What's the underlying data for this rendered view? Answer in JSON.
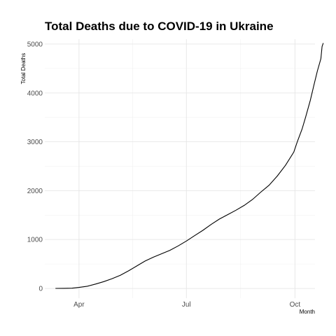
{
  "chart_data": {
    "type": "line",
    "title": "Total Deaths due to COVID-19 in Ukraine",
    "xlabel": "Month",
    "ylabel": "Total Deaths",
    "x_ticks": [
      {
        "label": "Apr",
        "date": "2020-04-01"
      },
      {
        "label": "Jul",
        "date": "2020-07-01"
      },
      {
        "label": "Oct",
        "date": "2020-10-01"
      }
    ],
    "y_ticks": [
      0,
      1000,
      2000,
      3000,
      4000,
      5000
    ],
    "xlim": [
      "2020-03-03",
      "2020-10-18"
    ],
    "ylim": [
      -200,
      5100
    ],
    "grid": true,
    "series": [
      {
        "color": "#000000",
        "points": [
          {
            "x": "2020-03-12",
            "y": 0
          },
          {
            "x": "2020-03-19",
            "y": 2
          },
          {
            "x": "2020-03-26",
            "y": 5
          },
          {
            "x": "2020-04-01",
            "y": 20
          },
          {
            "x": "2020-04-08",
            "y": 45
          },
          {
            "x": "2020-04-15",
            "y": 90
          },
          {
            "x": "2020-04-22",
            "y": 140
          },
          {
            "x": "2020-04-29",
            "y": 200
          },
          {
            "x": "2020-05-06",
            "y": 270
          },
          {
            "x": "2020-05-13",
            "y": 360
          },
          {
            "x": "2020-05-20",
            "y": 460
          },
          {
            "x": "2020-05-27",
            "y": 560
          },
          {
            "x": "2020-06-03",
            "y": 640
          },
          {
            "x": "2020-06-10",
            "y": 710
          },
          {
            "x": "2020-06-17",
            "y": 780
          },
          {
            "x": "2020-06-24",
            "y": 870
          },
          {
            "x": "2020-07-01",
            "y": 970
          },
          {
            "x": "2020-07-08",
            "y": 1080
          },
          {
            "x": "2020-07-15",
            "y": 1190
          },
          {
            "x": "2020-07-22",
            "y": 1310
          },
          {
            "x": "2020-07-29",
            "y": 1420
          },
          {
            "x": "2020-08-05",
            "y": 1510
          },
          {
            "x": "2020-08-12",
            "y": 1600
          },
          {
            "x": "2020-08-19",
            "y": 1700
          },
          {
            "x": "2020-08-26",
            "y": 1820
          },
          {
            "x": "2020-09-02",
            "y": 1970
          },
          {
            "x": "2020-09-09",
            "y": 2110
          },
          {
            "x": "2020-09-16",
            "y": 2300
          },
          {
            "x": "2020-09-23",
            "y": 2520
          },
          {
            "x": "2020-09-30",
            "y": 2790
          },
          {
            "x": "2020-10-03",
            "y": 3000
          },
          {
            "x": "2020-10-07",
            "y": 3260
          },
          {
            "x": "2020-10-10",
            "y": 3500
          },
          {
            "x": "2020-10-14",
            "y": 3850
          },
          {
            "x": "2020-10-17",
            "y": 4150
          },
          {
            "x": "2020-10-20",
            "y": 4450
          },
          {
            "x": "2020-10-23",
            "y": 4700
          },
          {
            "x": "2020-10-24",
            "y": 4950
          },
          {
            "x": "2020-10-25",
            "y": 5020
          }
        ]
      }
    ]
  }
}
